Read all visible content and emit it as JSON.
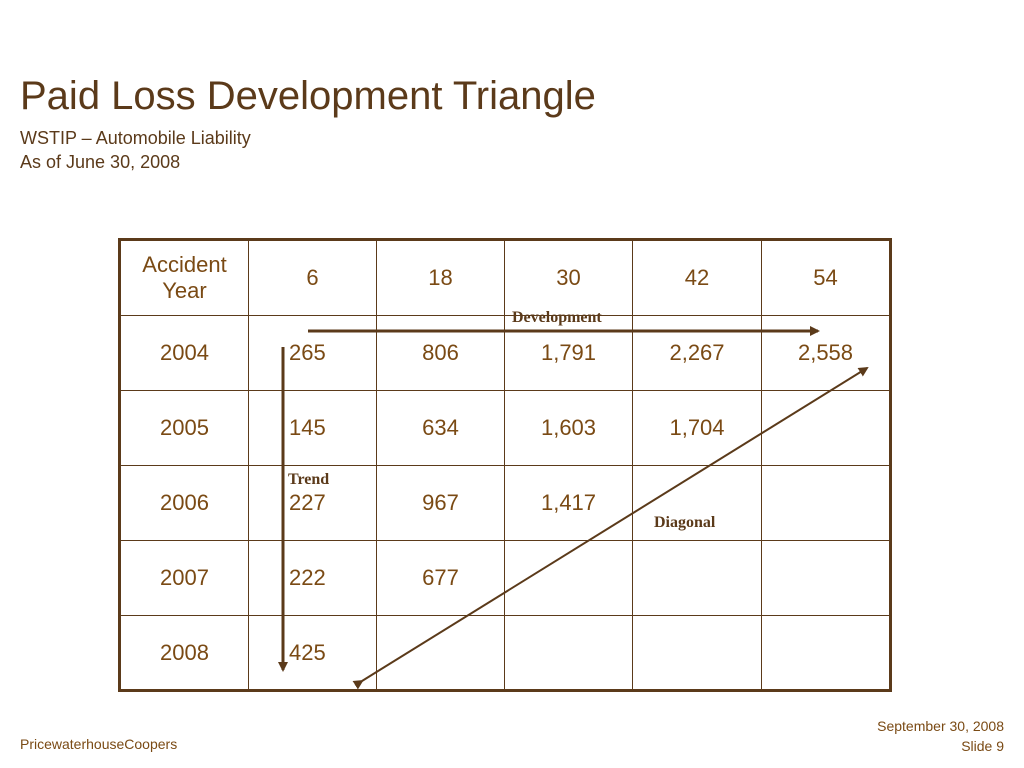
{
  "slide": {
    "title": "Paid Loss Development Triangle",
    "subtitle_line1": "WSTIP – Automobile Liability",
    "subtitle_line2": "As of June 30, 2008"
  },
  "table": {
    "header": [
      "Accident Year",
      "6",
      "18",
      "30",
      "42",
      "54"
    ],
    "rows": [
      {
        "year": "2004",
        "values": [
          "265",
          "806",
          "1,791",
          "2,267",
          "2,558"
        ]
      },
      {
        "year": "2005",
        "values": [
          "145",
          "634",
          "1,603",
          "1,704",
          ""
        ]
      },
      {
        "year": "2006",
        "values": [
          "227",
          "967",
          "1,417",
          "",
          ""
        ]
      },
      {
        "year": "2007",
        "values": [
          "222",
          "677",
          "",
          "",
          ""
        ]
      },
      {
        "year": "2008",
        "values": [
          "425",
          "",
          "",
          "",
          ""
        ]
      }
    ]
  },
  "annotations": {
    "development": "Development",
    "trend": "Trend",
    "diagonal": "Diagonal"
  },
  "footer": {
    "company": "PricewaterhouseCoopers",
    "date": "September 30, 2008",
    "slide": "Slide 9"
  },
  "colors": {
    "accent": "#5b3a1a",
    "text": "#7a4a14"
  }
}
